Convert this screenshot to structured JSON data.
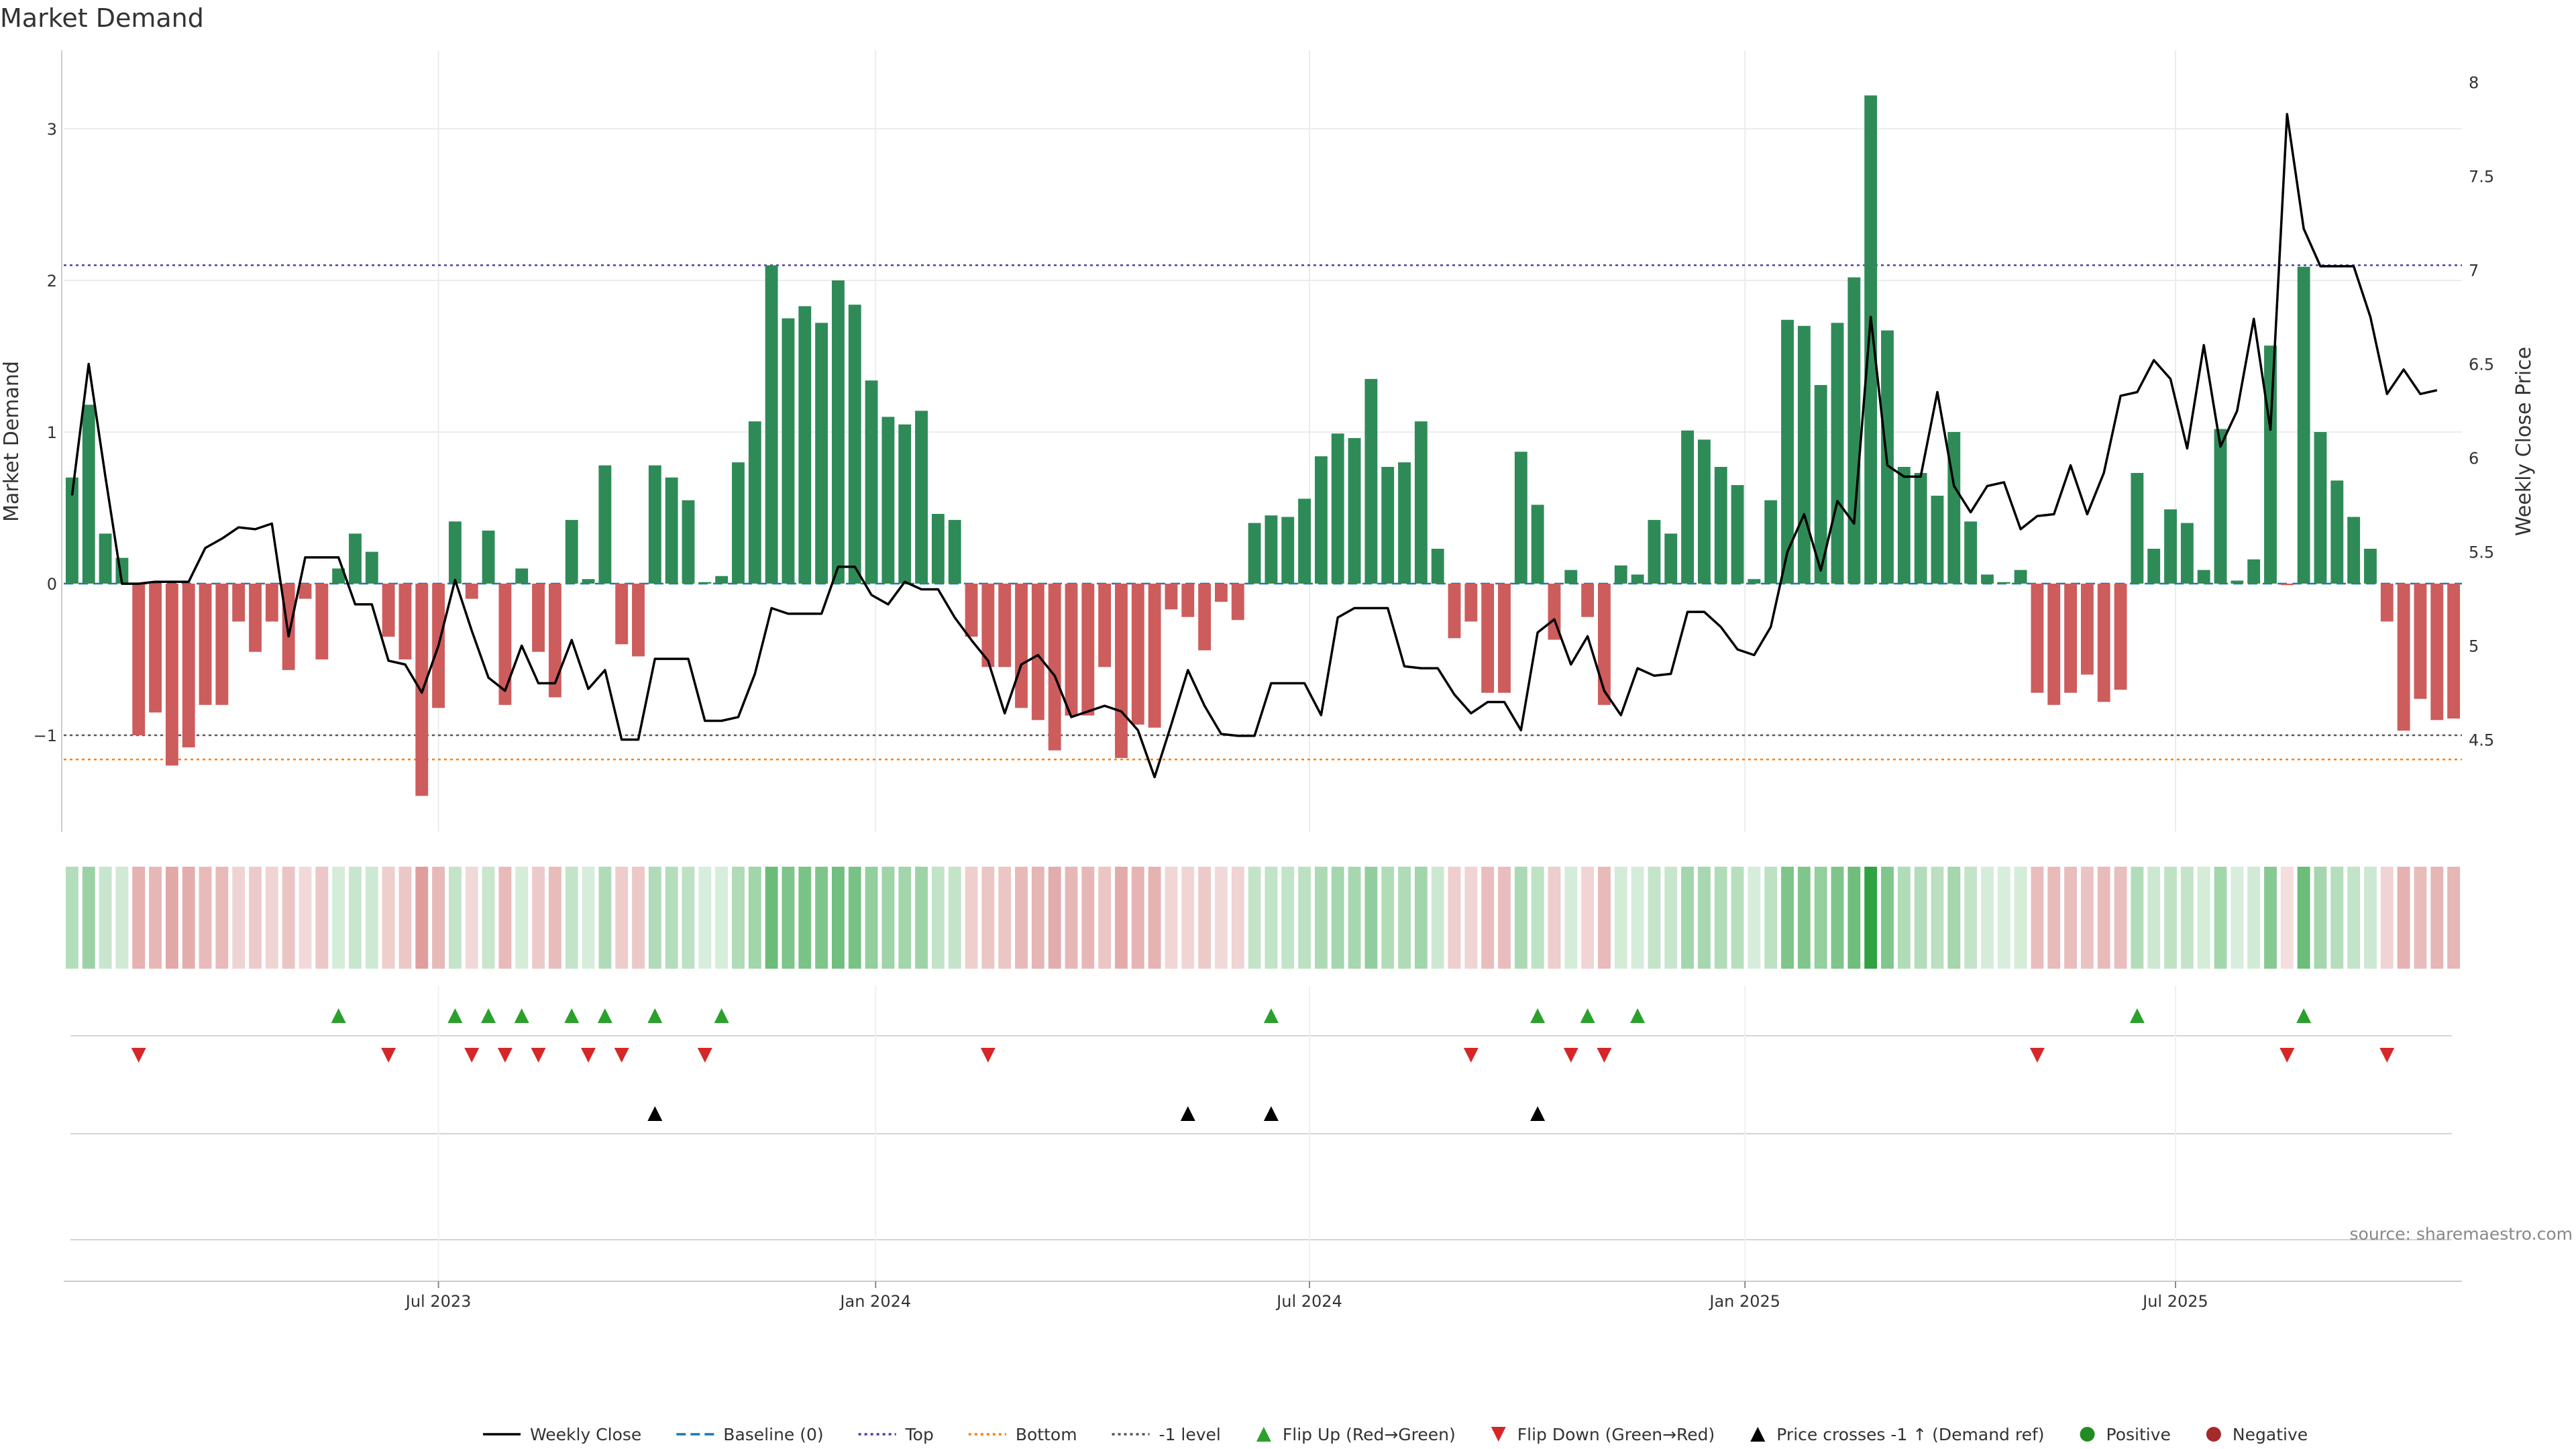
{
  "chart_data": {
    "type": "bar",
    "title": "Market Demand",
    "ylabel": "Market Demand",
    "y2label": "Weekly Close Price",
    "ylim": [
      -1.65,
      3.5
    ],
    "y2lim": [
      4.05,
      8.15
    ],
    "yticks": [
      "−1",
      "0",
      "1",
      "2",
      "3"
    ],
    "y2ticks": [
      "4.5",
      "5",
      "5.5",
      "6",
      "6.5",
      "7",
      "7.5",
      "8"
    ],
    "x_tick_labels": [
      {
        "label": "Jul 2023",
        "week": 22.5
      },
      {
        "label": "Jan 2024",
        "week": 48.75
      },
      {
        "label": "Jul 2024",
        "week": 74.8
      },
      {
        "label": "Jan 2025",
        "week": 100.95
      },
      {
        "label": "Jul 2025",
        "week": 126.8
      }
    ],
    "reference_lines": {
      "baseline": 0,
      "top": 2.1,
      "bottom": -1.16,
      "minus_one": -1
    },
    "demand": [
      0.7,
      1.18,
      0.33,
      0.17,
      -1.0,
      -0.85,
      -1.2,
      -1.08,
      -0.8,
      -0.8,
      -0.25,
      -0.45,
      -0.25,
      -0.57,
      -0.1,
      -0.5,
      0.1,
      0.33,
      0.21,
      -0.35,
      -0.5,
      -1.4,
      -0.82,
      0.41,
      -0.1,
      0.35,
      -0.8,
      0.1,
      -0.45,
      -0.75,
      0.42,
      0.03,
      0.78,
      -0.4,
      -0.48,
      0.78,
      0.7,
      0.55,
      0.01,
      0.05,
      0.8,
      1.07,
      2.1,
      1.75,
      1.83,
      1.72,
      2.0,
      1.84,
      1.34,
      1.1,
      1.05,
      1.14,
      0.46,
      0.42,
      -0.35,
      -0.55,
      -0.55,
      -0.82,
      -0.9,
      -1.1,
      -0.87,
      -0.87,
      -0.55,
      -1.15,
      -0.93,
      -0.95,
      -0.17,
      -0.22,
      -0.44,
      -0.12,
      -0.24,
      0.4,
      0.45,
      0.44,
      0.56,
      0.84,
      0.99,
      0.96,
      1.35,
      0.77,
      0.8,
      1.07,
      0.23,
      -0.36,
      -0.25,
      -0.72,
      -0.72,
      0.87,
      0.52,
      -0.37,
      0.09,
      -0.22,
      -0.8,
      0.12,
      0.06,
      0.42,
      0.33,
      1.01,
      0.95,
      0.77,
      0.65,
      0.03,
      0.55,
      1.74,
      1.7,
      1.31,
      1.72,
      2.02,
      3.22,
      1.67,
      0.77,
      0.73,
      0.58,
      1.0,
      0.41,
      0.06,
      0.01,
      0.09,
      -0.72,
      -0.8,
      -0.72,
      -0.6,
      -0.78,
      -0.7,
      0.73,
      0.23,
      0.49,
      0.4,
      0.09,
      1.02,
      0.02,
      0.16,
      1.57,
      -0.01,
      2.09,
      1.0,
      0.68,
      0.44,
      0.23,
      -0.25,
      -0.97,
      -0.76,
      -0.9,
      -0.89
    ],
    "weekly_close": [
      5.8,
      6.5,
      5.9,
      5.33,
      5.33,
      5.34,
      5.34,
      5.34,
      5.52,
      5.57,
      5.63,
      5.62,
      5.65,
      5.05,
      5.47,
      5.47,
      5.47,
      5.22,
      5.22,
      4.92,
      4.9,
      4.75,
      5.0,
      5.35,
      5.08,
      4.83,
      4.76,
      5.0,
      4.8,
      4.8,
      5.03,
      4.77,
      4.87,
      4.5,
      4.5,
      4.93,
      4.93,
      4.93,
      4.6,
      4.6,
      4.62,
      4.85,
      5.2,
      5.17,
      5.17,
      5.17,
      5.42,
      5.42,
      5.27,
      5.22,
      5.34,
      5.3,
      5.3,
      5.15,
      5.03,
      4.92,
      4.64,
      4.9,
      4.95,
      4.84,
      4.62,
      4.65,
      4.68,
      4.65,
      4.55,
      4.3,
      4.58,
      4.87,
      4.68,
      4.53,
      4.52,
      4.52,
      4.8,
      4.8,
      4.8,
      4.63,
      5.15,
      5.2,
      5.2,
      5.2,
      4.89,
      4.88,
      4.88,
      4.74,
      4.64,
      4.7,
      4.7,
      4.55,
      5.07,
      5.14,
      4.9,
      5.05,
      4.76,
      4.63,
      4.88,
      4.84,
      4.85,
      5.18,
      5.18,
      5.1,
      4.98,
      4.95,
      5.1,
      5.5,
      5.7,
      5.4,
      5.77,
      5.65,
      6.75,
      5.96,
      5.9,
      5.9,
      6.35,
      5.85,
      5.71,
      5.85,
      5.87,
      5.62,
      5.69,
      5.7,
      5.96,
      5.7,
      5.92,
      6.33,
      6.35,
      6.52,
      6.42,
      6.05,
      6.6,
      6.06,
      6.25,
      6.74,
      6.15,
      7.83,
      7.22,
      7.02,
      7.02,
      7.02,
      6.75,
      6.34,
      6.47,
      6.34,
      6.36
    ],
    "flip_up": [
      16,
      23,
      25,
      27,
      30,
      32,
      35,
      39,
      72,
      88,
      91,
      94,
      124,
      134
    ],
    "flip_down": [
      4,
      19,
      24,
      26,
      28,
      31,
      33,
      38,
      55,
      84,
      90,
      92,
      118,
      133,
      139
    ],
    "price_cross_up": [
      35,
      67,
      72,
      88
    ],
    "legend": [
      {
        "label": "Weekly Close",
        "kind": "line",
        "color": "#000000"
      },
      {
        "label": "Baseline (0)",
        "kind": "dash",
        "color": "#1f77b4"
      },
      {
        "label": "Top",
        "kind": "dot",
        "color": "#4b3fa8"
      },
      {
        "label": "Bottom",
        "kind": "dot",
        "color": "#ff7f0e"
      },
      {
        "label": "-1 level",
        "kind": "dot",
        "color": "#555555"
      },
      {
        "label": "Flip Up (Red→Green)",
        "kind": "tri-up",
        "color": "#2ca02c"
      },
      {
        "label": "Flip Down (Green→Red)",
        "kind": "tri-down",
        "color": "#d62728"
      },
      {
        "label": "Price crosses -1 ↑ (Demand ref)",
        "kind": "tri-up",
        "color": "#000000"
      },
      {
        "label": "Positive",
        "kind": "circle",
        "color": "#228b22"
      },
      {
        "label": "Negative",
        "kind": "circle",
        "color": "#a52a2a"
      }
    ],
    "source": "source: sharemaestro.com",
    "colors": {
      "positive_bar": "#2e8b57",
      "negative_bar": "#cd5c5c",
      "price_line": "#000000"
    }
  }
}
